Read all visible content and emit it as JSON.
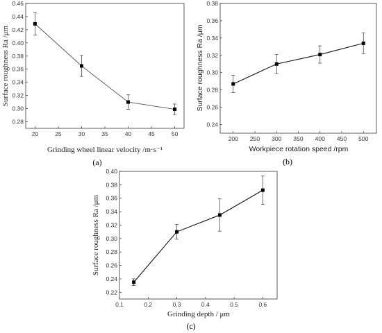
{
  "chart_data": [
    {
      "type": "line",
      "panel": "(a)",
      "xlabel": "Grinding wheel linear velocity /m·s⁻¹",
      "ylabel": "Surface roughness Ra /μm",
      "xlim": [
        18,
        52
      ],
      "ylim": [
        0.27,
        0.46
      ],
      "xticks": [
        20,
        25,
        30,
        35,
        40,
        45,
        50
      ],
      "yticks": [
        0.28,
        0.3,
        0.32,
        0.34,
        0.36,
        0.38,
        0.4,
        0.42,
        0.44,
        0.46
      ],
      "ydecimals": 2,
      "grid": false,
      "line_color": "#555555",
      "x": [
        20,
        30,
        40,
        50
      ],
      "y": [
        0.429,
        0.365,
        0.31,
        0.299
      ],
      "yerr": [
        0.017,
        0.016,
        0.011,
        0.008
      ]
    },
    {
      "type": "line",
      "panel": "(b)",
      "xlabel": "Workpiece rotation speed /rpm",
      "ylabel": "Surface roughness Ra /μm",
      "xlim": [
        170,
        530
      ],
      "ylim": [
        0.23,
        0.38
      ],
      "xticks": [
        200,
        250,
        300,
        350,
        400,
        450,
        500
      ],
      "yticks": [
        0.24,
        0.26,
        0.28,
        0.3,
        0.32,
        0.34,
        0.36,
        0.38
      ],
      "ydecimals": 2,
      "grid": false,
      "line_color": "#111111",
      "x": [
        200,
        300,
        400,
        500
      ],
      "y": [
        0.287,
        0.31,
        0.321,
        0.334
      ],
      "yerr": [
        0.01,
        0.011,
        0.01,
        0.012
      ]
    },
    {
      "type": "line",
      "panel": "(c)",
      "xlabel": "Grinding depth / μm",
      "ylabel": "Surface roughness Ra /μm",
      "xlim": [
        0.1,
        0.65
      ],
      "ylim": [
        0.21,
        0.4
      ],
      "xticks": [
        0.1,
        0.2,
        0.3,
        0.4,
        0.5,
        0.6
      ],
      "yticks": [
        0.22,
        0.24,
        0.26,
        0.28,
        0.3,
        0.32,
        0.34,
        0.36,
        0.38,
        0.4
      ],
      "xdecimals": 1,
      "ydecimals": 2,
      "grid": false,
      "line_color": "#111111",
      "x": [
        0.15,
        0.3,
        0.45,
        0.6
      ],
      "y": [
        0.235,
        0.31,
        0.335,
        0.372
      ],
      "yerr": [
        0.005,
        0.011,
        0.024,
        0.021
      ]
    }
  ]
}
